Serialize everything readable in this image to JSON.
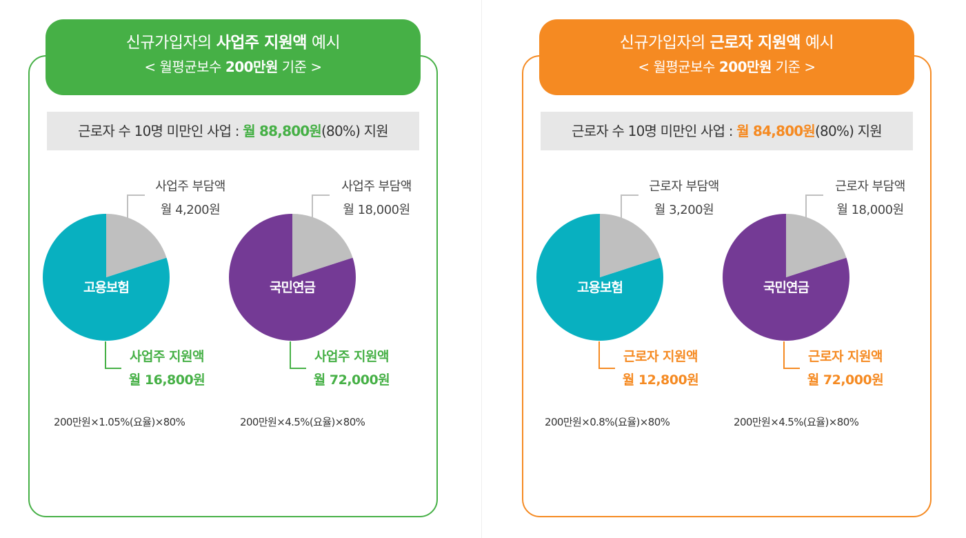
{
  "colors": {
    "green": "#46b046",
    "orange": "#f58a22",
    "teal": "#08b0c0",
    "purple": "#743a95",
    "gray": "#bfbfbf",
    "summary_bg": "#e7e7e7"
  },
  "panels": [
    {
      "accent": "#46b046",
      "header": {
        "line1_pre": "신규가입자의 ",
        "line1_bold": "사업주 지원액",
        "line1_post": " 예시",
        "line2_pre": "< 월평균보수 ",
        "line2_bold": "200만원",
        "line2_post": " 기준 >"
      },
      "summary": {
        "pre": "근로자 수 10명 미만인 사업 : ",
        "highlight": "월 88,800원",
        "post": "(80%) 지원"
      },
      "pies": [
        {
          "center_label": "고용보험",
          "share_label": "사업주 부담액",
          "share_value": "월 4,200원",
          "support_label": "사업주 지원액",
          "support_value": "월 16,800원",
          "formula": "200만원×1.05%(요율)×80%"
        },
        {
          "center_label": "국민연금",
          "share_label": "사업주 부담액",
          "share_value": "월 18,000원",
          "support_label": "사업주 지원액",
          "support_value": "월 72,000원",
          "formula": "200만원×4.5%(요율)×80%"
        }
      ]
    },
    {
      "accent": "#f58a22",
      "header": {
        "line1_pre": "신규가입자의 ",
        "line1_bold": "근로자 지원액",
        "line1_post": " 예시",
        "line2_pre": "< 월평균보수 ",
        "line2_bold": "200만원",
        "line2_post": " 기준 >"
      },
      "summary": {
        "pre": "근로자 수 10명 미만인 사업 : ",
        "highlight": "월 84,800원",
        "post": "(80%) 지원"
      },
      "pies": [
        {
          "center_label": "고용보험",
          "share_label": "근로자 부담액",
          "share_value": "월 3,200원",
          "support_label": "근로자 지원액",
          "support_value": "월 12,800원",
          "formula": "200만원×0.8%(요율)×80%"
        },
        {
          "center_label": "국민연금",
          "share_label": "근로자 부담액",
          "share_value": "월 18,000원",
          "support_label": "근로자 지원액",
          "support_value": "월 72,000원",
          "formula": "200만원×4.5%(요율)×80%"
        }
      ]
    }
  ],
  "chart_data": [
    {
      "type": "pie",
      "title": "고용보험",
      "categories": [
        "사업주 부담액",
        "사업주 지원액"
      ],
      "values": [
        4200,
        16800
      ],
      "colors": [
        "#bfbfbf",
        "#08b0c0"
      ]
    },
    {
      "type": "pie",
      "title": "국민연금",
      "categories": [
        "사업주 부담액",
        "사업주 지원액"
      ],
      "values": [
        18000,
        72000
      ],
      "colors": [
        "#bfbfbf",
        "#743a95"
      ]
    },
    {
      "type": "pie",
      "title": "고용보험",
      "categories": [
        "근로자 부담액",
        "근로자 지원액"
      ],
      "values": [
        3200,
        12800
      ],
      "colors": [
        "#bfbfbf",
        "#08b0c0"
      ]
    },
    {
      "type": "pie",
      "title": "국민연금",
      "categories": [
        "근로자 부담액",
        "근로자 지원액"
      ],
      "values": [
        18000,
        72000
      ],
      "colors": [
        "#bfbfbf",
        "#743a95"
      ]
    }
  ]
}
